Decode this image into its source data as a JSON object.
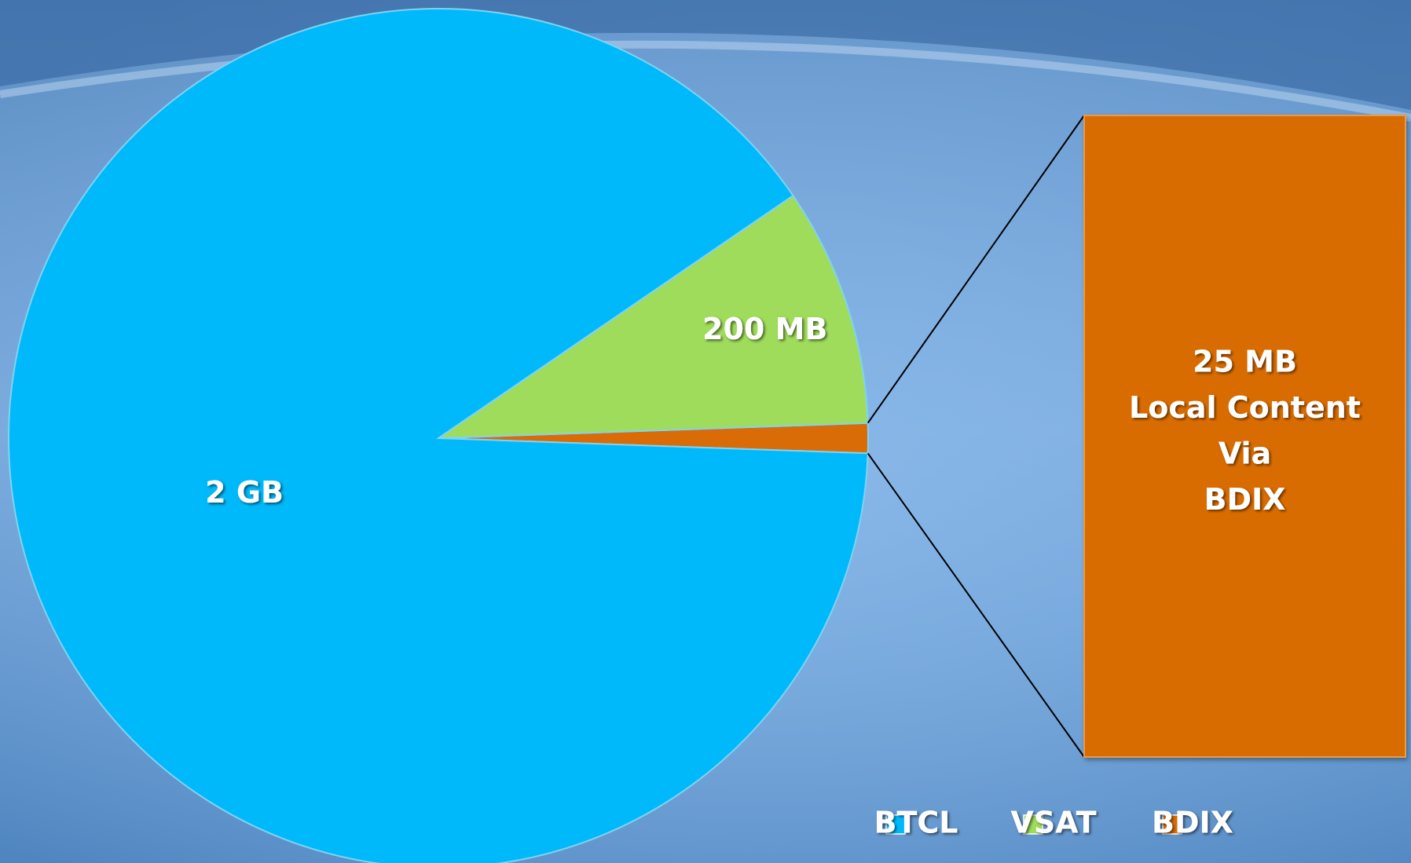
{
  "chart_data": {
    "type": "bar-of-pie",
    "categories": [
      "BTCL",
      "VSAT",
      "BDIX"
    ],
    "values": [
      2000,
      200,
      25
    ],
    "value_labels": [
      "2 GB",
      "200 MB",
      "25 MB"
    ],
    "colors": [
      "#00b9fb",
      "#9fdc5b",
      "#d96c06"
    ],
    "breakout_annotation": [
      "Local Content",
      "Via",
      "BDIX"
    ],
    "legend": "bottom-right"
  }
}
